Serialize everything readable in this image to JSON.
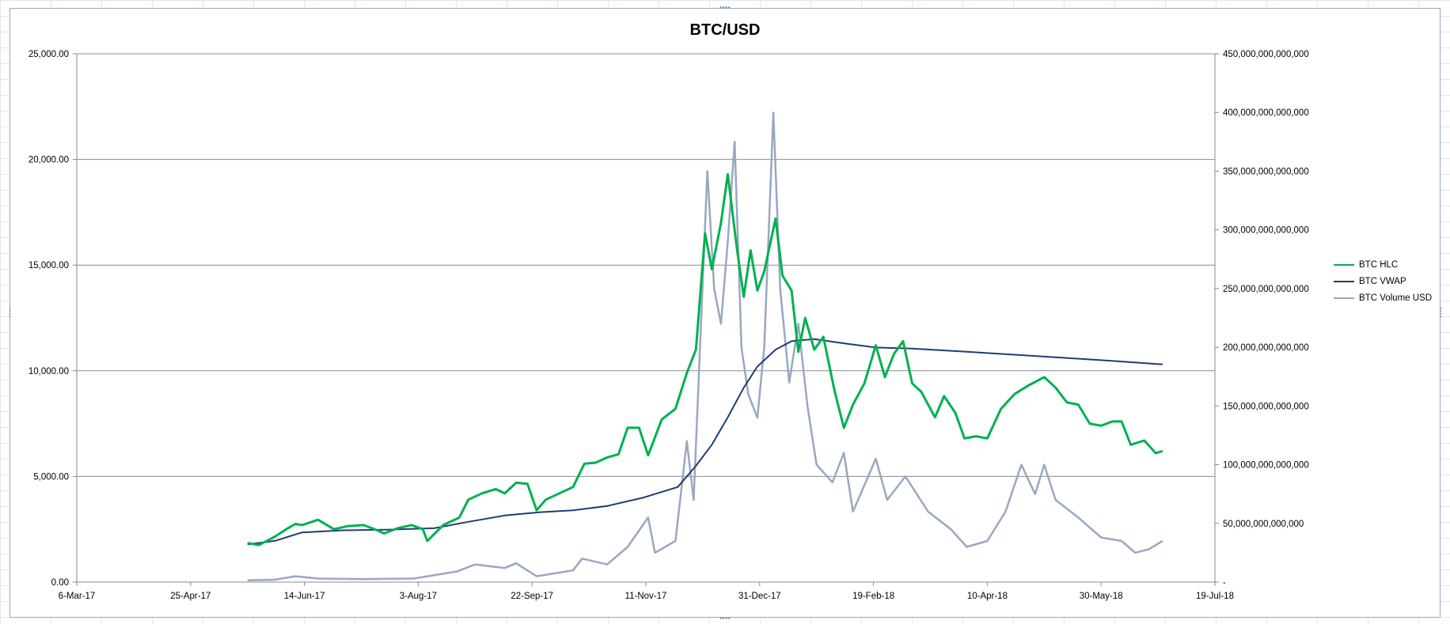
{
  "chart_data": {
    "type": "line",
    "title": "BTC/USD",
    "xlabel": "",
    "ylabel": "",
    "x_ticks": [
      "6-Mar-17",
      "25-Apr-17",
      "14-Jun-17",
      "3-Aug-17",
      "22-Sep-17",
      "11-Nov-17",
      "31-Dec-17",
      "19-Feb-18",
      "10-Apr-18",
      "30-May-18",
      "19-Jul-18"
    ],
    "x_range": [
      "2017-03-06",
      "2018-07-19"
    ],
    "y_left_ticks": [
      "0.00",
      "5,000.00",
      "10,000.00",
      "15,000.00",
      "20,000.00",
      "25,000.00"
    ],
    "y_left_range": [
      0,
      25000
    ],
    "y_right_ticks": [
      "-",
      "50,000,000,000,000",
      "100,000,000,000,000",
      "150,000,000,000,000",
      "200,000,000,000,000",
      "250,000,000,000,000",
      "300,000,000,000,000",
      "350,000,000,000,000",
      "400,000,000,000,000",
      "450,000,000,000,000"
    ],
    "y_right_range": [
      0,
      450000000000000
    ],
    "grid": "horizontal major gridlines",
    "legend_position": "right",
    "series": [
      {
        "name": "BTC HLC",
        "axis": "left",
        "color": "#00b050",
        "points": [
          [
            "2017-05-20",
            1850
          ],
          [
            "2017-05-25",
            1750
          ],
          [
            "2017-06-01",
            2150
          ],
          [
            "2017-06-06",
            2500
          ],
          [
            "2017-06-10",
            2750
          ],
          [
            "2017-06-13",
            2700
          ],
          [
            "2017-06-20",
            2950
          ],
          [
            "2017-06-27",
            2500
          ],
          [
            "2017-07-03",
            2650
          ],
          [
            "2017-07-10",
            2700
          ],
          [
            "2017-07-16",
            2450
          ],
          [
            "2017-07-19",
            2300
          ],
          [
            "2017-07-25",
            2550
          ],
          [
            "2017-07-31",
            2700
          ],
          [
            "2017-08-05",
            2500
          ],
          [
            "2017-08-07",
            1950
          ],
          [
            "2017-08-14",
            2700
          ],
          [
            "2017-08-21",
            3050
          ],
          [
            "2017-08-25",
            3900
          ],
          [
            "2017-08-31",
            4200
          ],
          [
            "2017-09-06",
            4400
          ],
          [
            "2017-09-10",
            4200
          ],
          [
            "2017-09-15",
            4700
          ],
          [
            "2017-09-20",
            4650
          ],
          [
            "2017-09-24",
            3400
          ],
          [
            "2017-09-28",
            3900
          ],
          [
            "2017-10-04",
            4200
          ],
          [
            "2017-10-10",
            4500
          ],
          [
            "2017-10-15",
            5600
          ],
          [
            "2017-10-20",
            5650
          ],
          [
            "2017-10-25",
            5900
          ],
          [
            "2017-10-30",
            6050
          ],
          [
            "2017-11-03",
            7300
          ],
          [
            "2017-11-08",
            7300
          ],
          [
            "2017-11-12",
            6000
          ],
          [
            "2017-11-18",
            7700
          ],
          [
            "2017-11-24",
            8200
          ],
          [
            "2017-11-29",
            9900
          ],
          [
            "2017-12-03",
            11000
          ],
          [
            "2017-12-07",
            16500
          ],
          [
            "2017-12-10",
            14800
          ],
          [
            "2017-12-14",
            17000
          ],
          [
            "2017-12-17",
            19300
          ],
          [
            "2017-12-21",
            15800
          ],
          [
            "2017-12-24",
            13500
          ],
          [
            "2017-12-27",
            15700
          ],
          [
            "2017-12-30",
            13800
          ],
          [
            "2018-01-02",
            14700
          ],
          [
            "2018-01-07",
            17200
          ],
          [
            "2018-01-10",
            14500
          ],
          [
            "2018-01-14",
            13800
          ],
          [
            "2018-01-17",
            10900
          ],
          [
            "2018-01-20",
            12500
          ],
          [
            "2018-01-24",
            11000
          ],
          [
            "2018-01-28",
            11600
          ],
          [
            "2018-02-02",
            9000
          ],
          [
            "2018-02-06",
            7300
          ],
          [
            "2018-02-10",
            8400
          ],
          [
            "2018-02-15",
            9400
          ],
          [
            "2018-02-20",
            11200
          ],
          [
            "2018-02-24",
            9700
          ],
          [
            "2018-02-28",
            10800
          ],
          [
            "2018-03-04",
            11400
          ],
          [
            "2018-03-08",
            9400
          ],
          [
            "2018-03-12",
            9000
          ],
          [
            "2018-03-18",
            7800
          ],
          [
            "2018-03-22",
            8800
          ],
          [
            "2018-03-27",
            8000
          ],
          [
            "2018-03-31",
            6800
          ],
          [
            "2018-04-05",
            6900
          ],
          [
            "2018-04-10",
            6800
          ],
          [
            "2018-04-16",
            8200
          ],
          [
            "2018-04-22",
            8900
          ],
          [
            "2018-04-28",
            9300
          ],
          [
            "2018-05-05",
            9700
          ],
          [
            "2018-05-10",
            9200
          ],
          [
            "2018-05-15",
            8500
          ],
          [
            "2018-05-20",
            8400
          ],
          [
            "2018-05-25",
            7500
          ],
          [
            "2018-05-30",
            7400
          ],
          [
            "2018-06-04",
            7600
          ],
          [
            "2018-06-08",
            7600
          ],
          [
            "2018-06-12",
            6500
          ],
          [
            "2018-06-18",
            6700
          ],
          [
            "2018-06-23",
            6100
          ],
          [
            "2018-06-26",
            6200
          ]
        ]
      },
      {
        "name": "BTC VWAP",
        "axis": "left",
        "color": "#1f3d73",
        "points": [
          [
            "2017-05-20",
            1780
          ],
          [
            "2017-06-01",
            1950
          ],
          [
            "2017-06-13",
            2350
          ],
          [
            "2017-07-01",
            2450
          ],
          [
            "2017-07-20",
            2480
          ],
          [
            "2017-08-10",
            2550
          ],
          [
            "2017-08-25",
            2850
          ],
          [
            "2017-09-10",
            3150
          ],
          [
            "2017-09-25",
            3300
          ],
          [
            "2017-10-10",
            3400
          ],
          [
            "2017-10-25",
            3600
          ],
          [
            "2017-11-10",
            4000
          ],
          [
            "2017-11-25",
            4500
          ],
          [
            "2017-12-03",
            5500
          ],
          [
            "2017-12-10",
            6500
          ],
          [
            "2017-12-17",
            7800
          ],
          [
            "2017-12-24",
            9200
          ],
          [
            "2017-12-30",
            10200
          ],
          [
            "2018-01-07",
            11000
          ],
          [
            "2018-01-14",
            11400
          ],
          [
            "2018-01-24",
            11500
          ],
          [
            "2018-02-06",
            11300
          ],
          [
            "2018-02-20",
            11100
          ],
          [
            "2018-03-08",
            11050
          ],
          [
            "2018-04-01",
            10900
          ],
          [
            "2018-05-01",
            10700
          ],
          [
            "2018-05-30",
            10500
          ],
          [
            "2018-06-26",
            10300
          ]
        ]
      },
      {
        "name": "BTC Volume USD",
        "axis": "right",
        "color": "#98a8c2",
        "points": [
          [
            "2017-05-20",
            1500000000000
          ],
          [
            "2017-06-01",
            2000000000000
          ],
          [
            "2017-06-10",
            5000000000000
          ],
          [
            "2017-06-20",
            3000000000000
          ],
          [
            "2017-07-10",
            2500000000000
          ],
          [
            "2017-08-01",
            3000000000000
          ],
          [
            "2017-08-20",
            9000000000000
          ],
          [
            "2017-08-28",
            15000000000000
          ],
          [
            "2017-09-10",
            12000000000000
          ],
          [
            "2017-09-15",
            16000000000000
          ],
          [
            "2017-09-24",
            5000000000000
          ],
          [
            "2017-10-10",
            10000000000000
          ],
          [
            "2017-10-14",
            20000000000000
          ],
          [
            "2017-10-25",
            15000000000000
          ],
          [
            "2017-11-03",
            30000000000000
          ],
          [
            "2017-11-12",
            55000000000000
          ],
          [
            "2017-11-15",
            25000000000000
          ],
          [
            "2017-11-24",
            35000000000000
          ],
          [
            "2017-11-29",
            120000000000000
          ],
          [
            "2017-12-02",
            70000000000000
          ],
          [
            "2017-12-08",
            350000000000000
          ],
          [
            "2017-12-11",
            250000000000000
          ],
          [
            "2017-12-14",
            220000000000000
          ],
          [
            "2017-12-17",
            290000000000000
          ],
          [
            "2017-12-20",
            375000000000000
          ],
          [
            "2017-12-23",
            200000000000000
          ],
          [
            "2017-12-26",
            160000000000000
          ],
          [
            "2017-12-30",
            140000000000000
          ],
          [
            "2018-01-02",
            200000000000000
          ],
          [
            "2018-01-06",
            400000000000000
          ],
          [
            "2018-01-09",
            250000000000000
          ],
          [
            "2018-01-13",
            170000000000000
          ],
          [
            "2018-01-17",
            220000000000000
          ],
          [
            "2018-01-21",
            150000000000000
          ],
          [
            "2018-01-25",
            100000000000000
          ],
          [
            "2018-02-01",
            85000000000000
          ],
          [
            "2018-02-06",
            110000000000000
          ],
          [
            "2018-02-10",
            60000000000000
          ],
          [
            "2018-02-20",
            105000000000000
          ],
          [
            "2018-02-25",
            70000000000000
          ],
          [
            "2018-03-05",
            90000000000000
          ],
          [
            "2018-03-15",
            60000000000000
          ],
          [
            "2018-03-25",
            45000000000000
          ],
          [
            "2018-04-01",
            30000000000000
          ],
          [
            "2018-04-10",
            35000000000000
          ],
          [
            "2018-04-18",
            60000000000000
          ],
          [
            "2018-04-25",
            100000000000000
          ],
          [
            "2018-05-01",
            75000000000000
          ],
          [
            "2018-05-05",
            100000000000000
          ],
          [
            "2018-05-10",
            70000000000000
          ],
          [
            "2018-05-20",
            55000000000000
          ],
          [
            "2018-05-30",
            38000000000000
          ],
          [
            "2018-06-08",
            35000000000000
          ],
          [
            "2018-06-14",
            25000000000000
          ],
          [
            "2018-06-20",
            28000000000000
          ],
          [
            "2018-06-26",
            35000000000000
          ]
        ]
      }
    ]
  }
}
